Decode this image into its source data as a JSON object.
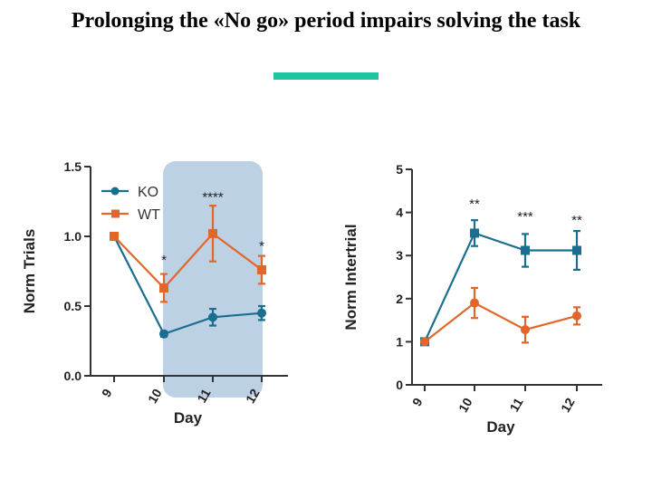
{
  "title": "Prolonging the «No go» period impairs solving the task",
  "accent_color": "#1fc4a0",
  "colors": {
    "KO": "#1a6f90",
    "WT": "#e0662a",
    "highlight": "#b9cfe3",
    "axis": "#333333"
  },
  "chart_data": [
    {
      "type": "line",
      "id": "left",
      "ylabel": "Norm Trials",
      "xlabel": "Day",
      "categories": [
        "9",
        "10",
        "11",
        "12"
      ],
      "ylim": [
        0,
        1.5
      ],
      "yticks": [
        "0.0",
        "0.5",
        "1.0",
        "1.5"
      ],
      "highlight_days": [
        "10",
        "12"
      ],
      "legend": [
        "KO",
        "WT"
      ],
      "series": [
        {
          "name": "KO",
          "marker": "circle",
          "values": [
            1.0,
            0.3,
            0.42,
            0.45
          ],
          "errors": [
            0,
            0.02,
            0.06,
            0.05
          ]
        },
        {
          "name": "WT",
          "marker": "square",
          "values": [
            1.0,
            0.63,
            1.02,
            0.76
          ],
          "errors": [
            0,
            0.1,
            0.2,
            0.1
          ]
        }
      ],
      "annotations": [
        {
          "day": "10",
          "text": "*",
          "y": 0.8
        },
        {
          "day": "11",
          "text": "****",
          "y": 1.25
        },
        {
          "day": "12",
          "text": "*",
          "y": 0.9
        }
      ]
    },
    {
      "type": "line",
      "id": "right",
      "ylabel": "Norm Intertrial",
      "xlabel": "Day",
      "categories": [
        "9",
        "10",
        "11",
        "12"
      ],
      "ylim": [
        0,
        5
      ],
      "yticks": [
        "0",
        "1",
        "2",
        "3",
        "4",
        "5"
      ],
      "series": [
        {
          "name": "KO",
          "marker": "square",
          "values": [
            1.0,
            3.52,
            3.12,
            3.12
          ],
          "errors": [
            0,
            0.3,
            0.38,
            0.45
          ]
        },
        {
          "name": "WT",
          "marker": "circle",
          "values": [
            1.0,
            1.9,
            1.28,
            1.6
          ],
          "errors": [
            0,
            0.35,
            0.3,
            0.2
          ]
        }
      ],
      "annotations": [
        {
          "day": "10",
          "text": "**",
          "y": 4.1
        },
        {
          "day": "11",
          "text": "***",
          "y": 3.8
        },
        {
          "day": "12",
          "text": "**",
          "y": 3.72
        }
      ]
    }
  ]
}
